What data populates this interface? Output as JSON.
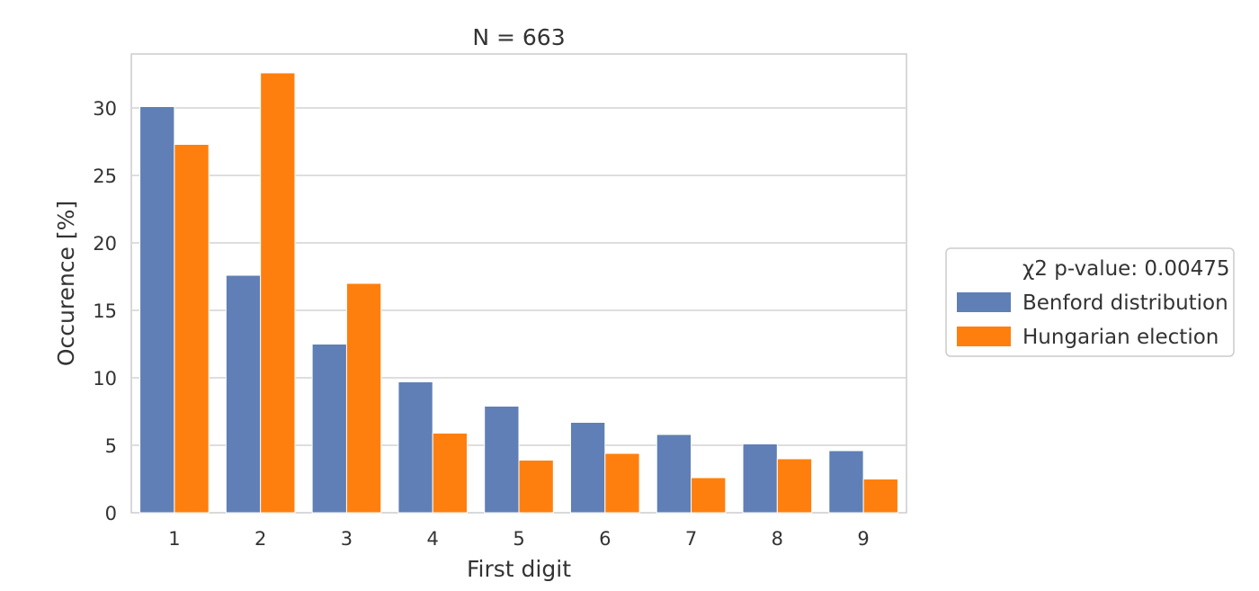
{
  "chart_data": {
    "type": "bar",
    "title": "N = 663",
    "xlabel": "First digit",
    "ylabel": "Occurence [%]",
    "categories": [
      "1",
      "2",
      "3",
      "4",
      "5",
      "6",
      "7",
      "8",
      "9"
    ],
    "series": [
      {
        "name": "Benford distribution",
        "color": "#5f7fb6",
        "values": [
          30.1,
          17.6,
          12.5,
          9.7,
          7.9,
          6.7,
          5.8,
          5.1,
          4.6
        ]
      },
      {
        "name": "Hungarian election",
        "color": "#ff7f0e",
        "values": [
          27.3,
          32.6,
          17.0,
          5.9,
          3.9,
          4.4,
          2.6,
          4.0,
          2.5
        ]
      }
    ],
    "ylim": [
      0,
      34
    ],
    "yticks": [
      0,
      5,
      10,
      15,
      20,
      25,
      30
    ],
    "grid": true,
    "legend": {
      "placement": "outside-right",
      "title": "χ2 p-value: 0.00475"
    }
  }
}
